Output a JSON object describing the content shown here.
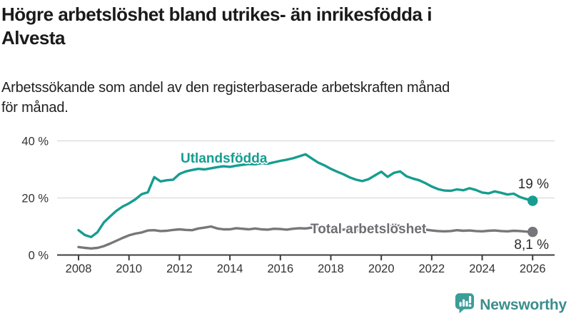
{
  "header": {
    "title_lines": [
      "Högre arbetslöshet bland utrikes- än inrikesfödda i",
      "Alvesta"
    ],
    "subtitle_lines": [
      "Arbetssökande som andel av den registerbaserade arbetskraften månad",
      "för månad."
    ]
  },
  "chart_data": {
    "type": "line",
    "title": "Högre arbetslöshet bland utrikes- än inrikesfödda i Alvesta",
    "subtitle": "Arbetssökande som andel av den registerbaserade arbetskraften månad för månad.",
    "xlabel": "",
    "ylabel": "",
    "grid": "horizontal",
    "legend_position": "inline-labels",
    "xlim": [
      2007.15,
      2026.87
    ],
    "ylim": [
      0,
      40
    ],
    "x_ticks": [
      2008,
      2010,
      2012,
      2014,
      2016,
      2018,
      2020,
      2022,
      2024,
      2026
    ],
    "x_tick_labels": [
      "2008",
      "2010",
      "2012",
      "2014",
      "2016",
      "2018",
      "2020",
      "2022",
      "2024",
      "2026"
    ],
    "y_ticks": [
      0,
      20,
      40
    ],
    "y_tick_labels": [
      "0 %",
      "20 %",
      "40 %"
    ],
    "x": [
      2008,
      2008.25,
      2008.5,
      2008.75,
      2009,
      2009.25,
      2009.5,
      2009.75,
      2010,
      2010.25,
      2010.5,
      2010.75,
      2011,
      2011.25,
      2011.5,
      2011.75,
      2012,
      2012.25,
      2012.5,
      2012.75,
      2013,
      2013.25,
      2013.5,
      2013.75,
      2014,
      2014.25,
      2014.5,
      2014.75,
      2015,
      2015.25,
      2015.5,
      2015.75,
      2016,
      2016.25,
      2016.5,
      2016.75,
      2017,
      2017.25,
      2017.5,
      2017.75,
      2018,
      2018.25,
      2018.5,
      2018.75,
      2019,
      2019.25,
      2019.5,
      2019.75,
      2020,
      2020.25,
      2020.5,
      2020.75,
      2021,
      2021.25,
      2021.5,
      2021.75,
      2022,
      2022.25,
      2022.5,
      2022.75,
      2023,
      2023.25,
      2023.5,
      2023.75,
      2024,
      2024.25,
      2024.5,
      2024.75,
      2025,
      2025.25,
      2025.5,
      2025.75,
      2026
    ],
    "series": [
      {
        "name": "Utlandsfödda",
        "color": "#169d90",
        "end_label": "19 %",
        "end_value": 19,
        "values": [
          8.7,
          7.0,
          6.3,
          8.0,
          11.4,
          13.5,
          15.5,
          17.0,
          18.1,
          19.5,
          21.3,
          22.0,
          27.3,
          25.8,
          26.2,
          26.4,
          28.4,
          29.3,
          29.8,
          30.2,
          30.0,
          30.4,
          30.8,
          31.1,
          30.9,
          31.3,
          31.6,
          31.9,
          31.8,
          32.2,
          32.0,
          32.5,
          33.0,
          33.4,
          33.9,
          34.6,
          35.3,
          33.8,
          32.4,
          31.4,
          30.2,
          29.2,
          28.3,
          27.2,
          26.4,
          25.9,
          26.6,
          27.9,
          29.2,
          27.4,
          28.8,
          29.3,
          27.6,
          26.8,
          26.2,
          25.2,
          24.0,
          23.1,
          22.6,
          22.5,
          23.0,
          22.7,
          23.4,
          22.8,
          21.9,
          21.6,
          22.3,
          21.8,
          21.2,
          21.5,
          20.3,
          19.6,
          19.0
        ]
      },
      {
        "name": "Total arbetslöshet",
        "color": "#77767a",
        "end_label": "8,1 %",
        "end_value": 8.1,
        "values": [
          2.8,
          2.5,
          2.3,
          2.5,
          3.1,
          4.0,
          5.0,
          6.0,
          6.9,
          7.5,
          7.9,
          8.6,
          8.7,
          8.4,
          8.5,
          8.8,
          9.0,
          8.8,
          8.7,
          9.3,
          9.6,
          10.0,
          9.3,
          9.0,
          9.0,
          9.4,
          9.2,
          9.0,
          9.3,
          9.0,
          8.9,
          9.2,
          9.1,
          8.9,
          9.2,
          9.4,
          9.3,
          9.6,
          9.5,
          9.4,
          9.2,
          9.0,
          8.9,
          8.8,
          8.7,
          8.6,
          8.7,
          9.0,
          9.4,
          10.2,
          10.5,
          10.2,
          9.8,
          9.5,
          9.2,
          8.9,
          8.6,
          8.4,
          8.3,
          8.4,
          8.7,
          8.5,
          8.6,
          8.4,
          8.3,
          8.5,
          8.6,
          8.4,
          8.3,
          8.5,
          8.4,
          8.2,
          8.1
        ]
      }
    ],
    "style": {
      "grid_color": "#d9d9d9",
      "axis_color": "#3d3d3d",
      "tick_label_color": "#333333"
    }
  },
  "footer": {
    "brand": "Newsworthy"
  }
}
